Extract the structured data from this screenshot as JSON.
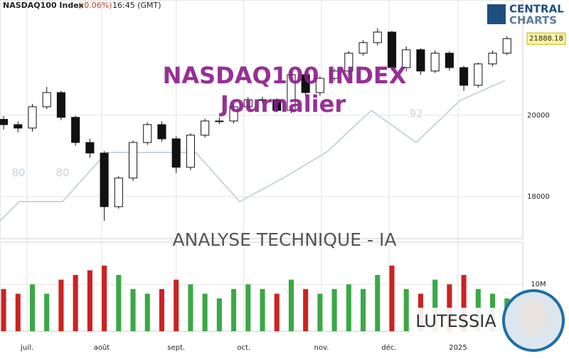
{
  "header": {
    "symbol": "NASDAQ100 Index",
    "change": "(-0.06%)",
    "time": "16:45 (GMT)"
  },
  "logo": {
    "line1": "CENTRAL",
    "line2": "CHARTS"
  },
  "watermark": {
    "title": "NASDAQ100 INDEX",
    "subtitle": "Journalier",
    "caption": "ANALYSE TECHNIQUE - IA",
    "brand": "LUTESSIA",
    "numbers": [
      "80",
      "80",
      "92"
    ]
  },
  "chart_data": [
    {
      "type": "candlestick",
      "open": [
        19900,
        19770,
        19685,
        20210,
        20560,
        19950,
        19330,
        19070,
        17750,
        18455,
        19330,
        19770,
        19420,
        18720,
        19510,
        19860,
        19860,
        20210,
        20385,
        20385,
        20120,
        21000,
        20560,
        20910,
        21090,
        21530,
        21790,
        22050,
        21175,
        21615,
        21090,
        21530,
        21175,
        20740,
        21265,
        21530
      ],
      "high": [
        19980,
        19850,
        20280,
        20700,
        20600,
        19990,
        19420,
        19120,
        18500,
        19380,
        19830,
        19850,
        19480,
        19560,
        19920,
        19950,
        20280,
        20450,
        20460,
        20420,
        21050,
        21040,
        20960,
        21150,
        21580,
        21850,
        22140,
        22080,
        21700,
        21650,
        21600,
        21580,
        21220,
        21300,
        21600,
        21950
      ],
      "low": [
        19650,
        19580,
        19600,
        20150,
        19880,
        19250,
        18950,
        17400,
        17700,
        18380,
        19270,
        19350,
        18580,
        18650,
        19450,
        19780,
        19800,
        20150,
        20300,
        20080,
        20050,
        20450,
        20480,
        20850,
        21030,
        21470,
        21720,
        21100,
        21080,
        21000,
        21040,
        21100,
        20600,
        20680,
        21200,
        21480
      ],
      "close": [
        19770,
        19685,
        20210,
        20560,
        19950,
        19330,
        19070,
        17750,
        18455,
        19330,
        19770,
        19420,
        18720,
        19510,
        19860,
        19860,
        20210,
        20385,
        20385,
        20120,
        21000,
        20560,
        20910,
        21090,
        21530,
        21790,
        22050,
        21175,
        21615,
        21090,
        21530,
        21175,
        20740,
        21265,
        21530,
        21888.18
      ],
      "last_value_label": "21888.18",
      "up_color": "#ffffff",
      "down_color": "#111111",
      "xlim": [
        -0.25,
        36.1
      ],
      "ylim": [
        17050,
        22840
      ],
      "yticks": [
        18000,
        20000
      ],
      "xticks": [
        {
          "value": 1.63,
          "label": "juil."
        },
        {
          "value": 6.82,
          "label": "août"
        },
        {
          "value": 12.0,
          "label": "sept."
        },
        {
          "value": 16.7,
          "label": "oct."
        },
        {
          "value": 22.1,
          "label": "nov."
        },
        {
          "value": 26.8,
          "label": "déc."
        },
        {
          "value": 31.6,
          "label": "2025"
        }
      ],
      "grid": true
    },
    {
      "type": "bar",
      "values": [
        9000000,
        8000000,
        10000000,
        8000000,
        11000000,
        12000000,
        13000000,
        14000000,
        12000000,
        9000000,
        8000000,
        9000000,
        11000000,
        10000000,
        8000000,
        7000000,
        9000000,
        10000000,
        9000000,
        8000000,
        11000000,
        9000000,
        8000000,
        9000000,
        10000000,
        9000000,
        12000000,
        14000000,
        9000000,
        8000000,
        11000000,
        10000000,
        12000000,
        9000000,
        8000000,
        7000000
      ],
      "up_color": "#3aa845",
      "down_color": "#cc2222",
      "xlim": [
        -0.25,
        36.1
      ],
      "ylim": [
        0,
        19000000
      ],
      "yticks": [
        {
          "value": 10000000,
          "label": "10M"
        }
      ]
    }
  ]
}
